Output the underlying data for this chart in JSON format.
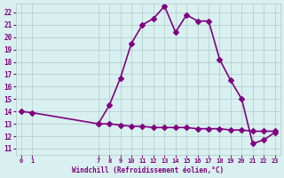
{
  "xlabel": "Windchill (Refroidissement éolien,°C)",
  "x_main": [
    0,
    1,
    7,
    8,
    9,
    10,
    11,
    12,
    13,
    14,
    15,
    16,
    17,
    18,
    19,
    20,
    21,
    22,
    23
  ],
  "y_main": [
    14.0,
    13.9,
    13.0,
    14.5,
    16.7,
    19.5,
    21.0,
    21.5,
    22.5,
    20.4,
    21.8,
    21.3,
    21.3,
    18.2,
    16.5,
    15.0,
    11.4,
    11.7,
    12.3
  ],
  "x_flat": [
    7,
    8,
    9,
    10,
    11,
    12,
    13,
    14,
    15,
    16,
    17,
    18,
    19,
    20,
    21,
    22,
    23
  ],
  "y_flat": [
    13.0,
    13.0,
    12.9,
    12.8,
    12.8,
    12.7,
    12.7,
    12.7,
    12.7,
    12.6,
    12.6,
    12.6,
    12.5,
    12.5,
    12.4,
    12.4,
    12.4
  ],
  "line_color": "#800080",
  "bg_color": "#d8f0f0",
  "grid_color": "#b0c8c8",
  "text_color": "#800080",
  "yticks": [
    11,
    12,
    13,
    14,
    15,
    16,
    17,
    18,
    19,
    20,
    21,
    22
  ],
  "xticks": [
    0,
    1,
    7,
    8,
    9,
    10,
    11,
    12,
    13,
    14,
    15,
    16,
    17,
    18,
    19,
    20,
    21,
    22,
    23
  ],
  "marker": "D",
  "markersize": 3,
  "linewidth": 1.2
}
